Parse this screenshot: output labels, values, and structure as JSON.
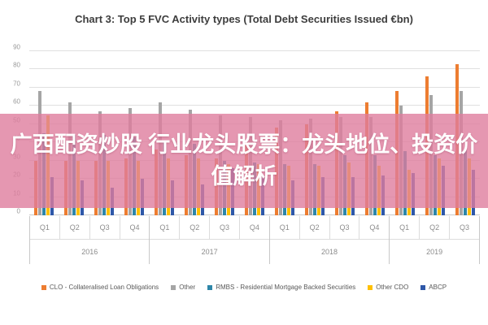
{
  "title": "Chart 3: Top 5 FVC Activity types (Total Debt Securities Issued €bn)",
  "watermark": {
    "line1": "广西配资炒股 行业龙头股票：龙头地位、投资价",
    "line2": "值解析",
    "band_color": "rgba(222,125,158,0.80)",
    "text_color": "#ffffff"
  },
  "chart_data": {
    "type": "bar",
    "title": "Chart 3: Top 5 FVC Activity types (Total Debt Securities Issued €bn)",
    "xlabel": "",
    "ylabel": "",
    "ylim": [
      0,
      90
    ],
    "y_ticks": [
      90,
      80,
      70,
      60,
      50,
      40,
      30,
      20,
      10,
      0
    ],
    "grid": true,
    "legend_position": "bottom",
    "x_axis": {
      "years": [
        {
          "label": "2016",
          "quarters": [
            "Q1",
            "Q2",
            "Q3",
            "Q4"
          ]
        },
        {
          "label": "2017",
          "quarters": [
            "Q1",
            "Q2",
            "Q3",
            "Q4"
          ]
        },
        {
          "label": "2018",
          "quarters": [
            "Q1",
            "Q2",
            "Q3",
            "Q4"
          ]
        },
        {
          "label": "2019",
          "quarters": [
            "Q1",
            "Q2",
            "Q3"
          ]
        }
      ]
    },
    "series": [
      {
        "name": "CLO - Collateralised Loan Obligations",
        "color": "#ED7D31",
        "values": [
          30,
          30,
          30,
          31,
          36,
          33,
          31,
          40,
          48,
          50,
          57,
          62,
          68,
          76,
          83
        ]
      },
      {
        "name": "Other",
        "color": "#A5A5A5",
        "values": [
          68,
          62,
          57,
          59,
          62,
          58,
          55,
          54,
          52,
          53,
          54,
          54,
          60,
          66,
          68
        ]
      },
      {
        "name": "RMBS - Residential Mortgage Backed Securities",
        "color": "#2E86A8",
        "values": [
          45,
          44,
          44,
          43,
          40,
          39,
          30,
          29,
          28,
          28,
          33,
          33,
          35,
          33,
          36
        ]
      },
      {
        "name": "Other CDO",
        "color": "#FFC000",
        "values": [
          55,
          30,
          30,
          30,
          31,
          31,
          28,
          28,
          27,
          27,
          29,
          27,
          25,
          31,
          31
        ]
      },
      {
        "name": "ABCP",
        "color": "#2E58A8",
        "values": [
          21,
          19,
          15,
          20,
          19,
          17,
          26,
          22,
          19,
          21,
          21,
          22,
          23,
          27,
          25
        ]
      }
    ]
  }
}
